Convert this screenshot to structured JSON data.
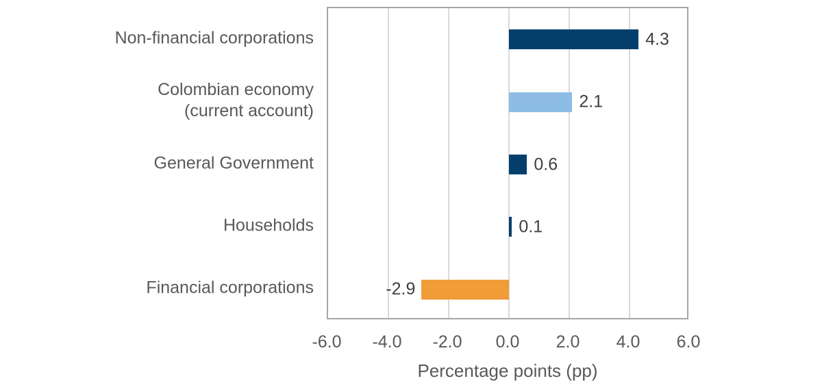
{
  "chart_data": {
    "type": "bar",
    "orientation": "horizontal",
    "title": "",
    "xlabel": "Percentage points (pp)",
    "ylabel": "",
    "categories": [
      "Non-financial corporations",
      "Colombian economy\n(current account)",
      "General Government",
      "Households",
      "Financial corporations"
    ],
    "slugs": [
      "non-financial-corporations",
      "colombian-economy-current-account",
      "general-government",
      "households",
      "financial-corporations"
    ],
    "values": [
      4.3,
      2.1,
      0.6,
      0.1,
      -2.9
    ],
    "data_labels": [
      "4.3",
      "2.1",
      "0.6",
      "0.1",
      "-2.9"
    ],
    "bar_colors": [
      "#043f6c",
      "#8dbde4",
      "#043f6c",
      "#043f6c",
      "#f09c38"
    ],
    "xlim": [
      -6,
      6
    ],
    "xticks": [
      -6,
      -4,
      -2,
      0,
      2,
      4,
      6
    ],
    "xtick_labels": [
      "-6.0",
      "-4.0",
      "-2.0",
      "0.0",
      "2.0",
      "4.0",
      "6.0"
    ],
    "grid": "vertical",
    "legend": "none"
  },
  "colors": {
    "dark_blue": "#043f6c",
    "light_blue": "#8dbde4",
    "orange": "#f09c38",
    "grid_line": "#d9d9d9",
    "plot_border": "#a6a6a6",
    "category_label_text": "#58595b",
    "tick_label_text": "#58595b",
    "data_label_text": "#3f3f3f",
    "background": "#ffffff"
  }
}
